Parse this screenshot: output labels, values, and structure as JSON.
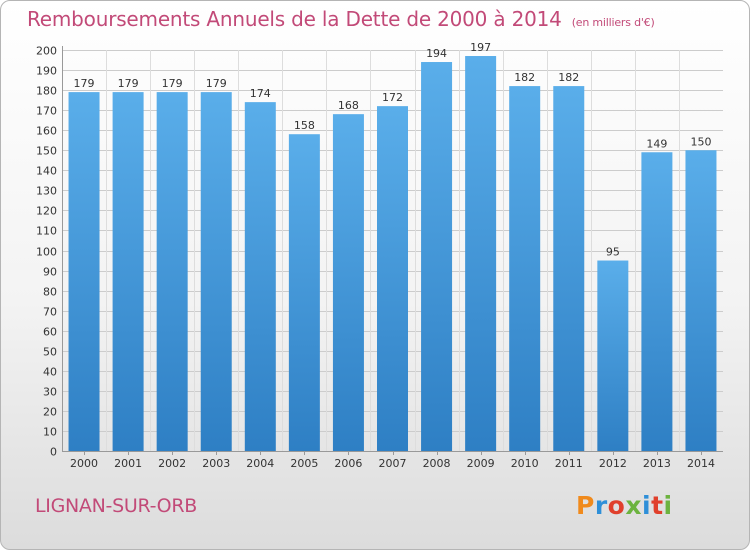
{
  "header": {
    "title": "Remboursements Annuels de la Dette de 2000 à 2014",
    "unit": "(en milliers d'€)"
  },
  "footer": {
    "commune": "LIGNAN-SUR-ORB",
    "brand": "Proxiti"
  },
  "colors": {
    "title": "#c24a78",
    "bar_top": "#5aaeea",
    "bar_bottom": "#2e7fc4",
    "grid": "#cccccc"
  },
  "chart_data": {
    "type": "bar",
    "title": "Remboursements Annuels de la Dette de 2000 à 2014",
    "xlabel": "",
    "ylabel": "",
    "categories": [
      "2000",
      "2001",
      "2002",
      "2003",
      "2004",
      "2005",
      "2006",
      "2007",
      "2008",
      "2009",
      "2010",
      "2011",
      "2012",
      "2013",
      "2014"
    ],
    "values": [
      179,
      179,
      179,
      179,
      174,
      158,
      168,
      172,
      194,
      197,
      182,
      182,
      95,
      149,
      150
    ],
    "ylim": [
      0,
      200
    ],
    "yticks": [
      0,
      10,
      20,
      30,
      40,
      50,
      60,
      70,
      80,
      90,
      100,
      110,
      120,
      130,
      140,
      150,
      160,
      170,
      180,
      190,
      200
    ],
    "grid": true,
    "data_labels": true
  }
}
